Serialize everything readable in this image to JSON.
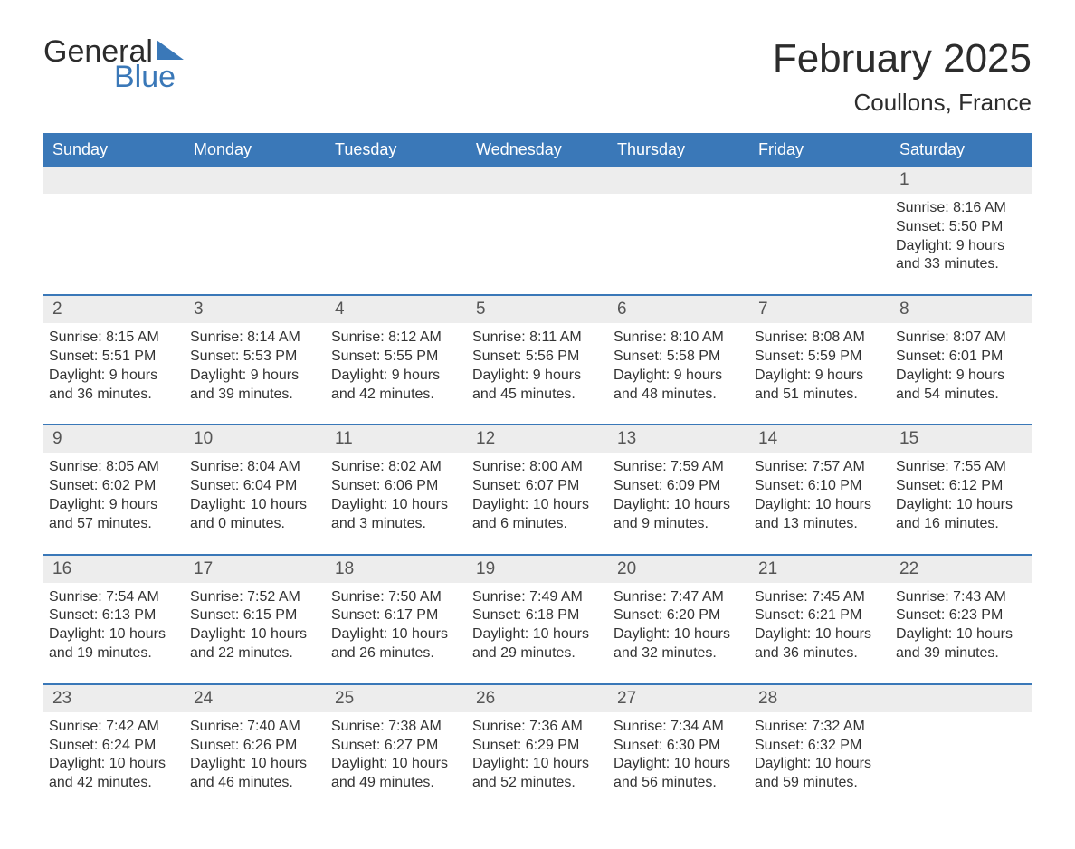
{
  "brand": {
    "general": "General",
    "blue": "Blue"
  },
  "title": "February 2025",
  "location": "Coullons, France",
  "colors": {
    "header_bg": "#3a78b8",
    "header_text": "#ffffff",
    "band_bg": "#ededed",
    "text": "#333333",
    "rule": "#3a78b8"
  },
  "fonts": {
    "title_size_pt": 33,
    "location_size_pt": 20,
    "dow_size_pt": 14,
    "daynum_size_pt": 14,
    "body_size_pt": 12
  },
  "dow": [
    "Sunday",
    "Monday",
    "Tuesday",
    "Wednesday",
    "Thursday",
    "Friday",
    "Saturday"
  ],
  "weeks": [
    [
      {
        "n": "",
        "sr": "",
        "ss": "",
        "dl": ""
      },
      {
        "n": "",
        "sr": "",
        "ss": "",
        "dl": ""
      },
      {
        "n": "",
        "sr": "",
        "ss": "",
        "dl": ""
      },
      {
        "n": "",
        "sr": "",
        "ss": "",
        "dl": ""
      },
      {
        "n": "",
        "sr": "",
        "ss": "",
        "dl": ""
      },
      {
        "n": "",
        "sr": "",
        "ss": "",
        "dl": ""
      },
      {
        "n": "1",
        "sr": "Sunrise: 8:16 AM",
        "ss": "Sunset: 5:50 PM",
        "dl": "Daylight: 9 hours and 33 minutes."
      }
    ],
    [
      {
        "n": "2",
        "sr": "Sunrise: 8:15 AM",
        "ss": "Sunset: 5:51 PM",
        "dl": "Daylight: 9 hours and 36 minutes."
      },
      {
        "n": "3",
        "sr": "Sunrise: 8:14 AM",
        "ss": "Sunset: 5:53 PM",
        "dl": "Daylight: 9 hours and 39 minutes."
      },
      {
        "n": "4",
        "sr": "Sunrise: 8:12 AM",
        "ss": "Sunset: 5:55 PM",
        "dl": "Daylight: 9 hours and 42 minutes."
      },
      {
        "n": "5",
        "sr": "Sunrise: 8:11 AM",
        "ss": "Sunset: 5:56 PM",
        "dl": "Daylight: 9 hours and 45 minutes."
      },
      {
        "n": "6",
        "sr": "Sunrise: 8:10 AM",
        "ss": "Sunset: 5:58 PM",
        "dl": "Daylight: 9 hours and 48 minutes."
      },
      {
        "n": "7",
        "sr": "Sunrise: 8:08 AM",
        "ss": "Sunset: 5:59 PM",
        "dl": "Daylight: 9 hours and 51 minutes."
      },
      {
        "n": "8",
        "sr": "Sunrise: 8:07 AM",
        "ss": "Sunset: 6:01 PM",
        "dl": "Daylight: 9 hours and 54 minutes."
      }
    ],
    [
      {
        "n": "9",
        "sr": "Sunrise: 8:05 AM",
        "ss": "Sunset: 6:02 PM",
        "dl": "Daylight: 9 hours and 57 minutes."
      },
      {
        "n": "10",
        "sr": "Sunrise: 8:04 AM",
        "ss": "Sunset: 6:04 PM",
        "dl": "Daylight: 10 hours and 0 minutes."
      },
      {
        "n": "11",
        "sr": "Sunrise: 8:02 AM",
        "ss": "Sunset: 6:06 PM",
        "dl": "Daylight: 10 hours and 3 minutes."
      },
      {
        "n": "12",
        "sr": "Sunrise: 8:00 AM",
        "ss": "Sunset: 6:07 PM",
        "dl": "Daylight: 10 hours and 6 minutes."
      },
      {
        "n": "13",
        "sr": "Sunrise: 7:59 AM",
        "ss": "Sunset: 6:09 PM",
        "dl": "Daylight: 10 hours and 9 minutes."
      },
      {
        "n": "14",
        "sr": "Sunrise: 7:57 AM",
        "ss": "Sunset: 6:10 PM",
        "dl": "Daylight: 10 hours and 13 minutes."
      },
      {
        "n": "15",
        "sr": "Sunrise: 7:55 AM",
        "ss": "Sunset: 6:12 PM",
        "dl": "Daylight: 10 hours and 16 minutes."
      }
    ],
    [
      {
        "n": "16",
        "sr": "Sunrise: 7:54 AM",
        "ss": "Sunset: 6:13 PM",
        "dl": "Daylight: 10 hours and 19 minutes."
      },
      {
        "n": "17",
        "sr": "Sunrise: 7:52 AM",
        "ss": "Sunset: 6:15 PM",
        "dl": "Daylight: 10 hours and 22 minutes."
      },
      {
        "n": "18",
        "sr": "Sunrise: 7:50 AM",
        "ss": "Sunset: 6:17 PM",
        "dl": "Daylight: 10 hours and 26 minutes."
      },
      {
        "n": "19",
        "sr": "Sunrise: 7:49 AM",
        "ss": "Sunset: 6:18 PM",
        "dl": "Daylight: 10 hours and 29 minutes."
      },
      {
        "n": "20",
        "sr": "Sunrise: 7:47 AM",
        "ss": "Sunset: 6:20 PM",
        "dl": "Daylight: 10 hours and 32 minutes."
      },
      {
        "n": "21",
        "sr": "Sunrise: 7:45 AM",
        "ss": "Sunset: 6:21 PM",
        "dl": "Daylight: 10 hours and 36 minutes."
      },
      {
        "n": "22",
        "sr": "Sunrise: 7:43 AM",
        "ss": "Sunset: 6:23 PM",
        "dl": "Daylight: 10 hours and 39 minutes."
      }
    ],
    [
      {
        "n": "23",
        "sr": "Sunrise: 7:42 AM",
        "ss": "Sunset: 6:24 PM",
        "dl": "Daylight: 10 hours and 42 minutes."
      },
      {
        "n": "24",
        "sr": "Sunrise: 7:40 AM",
        "ss": "Sunset: 6:26 PM",
        "dl": "Daylight: 10 hours and 46 minutes."
      },
      {
        "n": "25",
        "sr": "Sunrise: 7:38 AM",
        "ss": "Sunset: 6:27 PM",
        "dl": "Daylight: 10 hours and 49 minutes."
      },
      {
        "n": "26",
        "sr": "Sunrise: 7:36 AM",
        "ss": "Sunset: 6:29 PM",
        "dl": "Daylight: 10 hours and 52 minutes."
      },
      {
        "n": "27",
        "sr": "Sunrise: 7:34 AM",
        "ss": "Sunset: 6:30 PM",
        "dl": "Daylight: 10 hours and 56 minutes."
      },
      {
        "n": "28",
        "sr": "Sunrise: 7:32 AM",
        "ss": "Sunset: 6:32 PM",
        "dl": "Daylight: 10 hours and 59 minutes."
      },
      {
        "n": "",
        "sr": "",
        "ss": "",
        "dl": ""
      }
    ]
  ]
}
